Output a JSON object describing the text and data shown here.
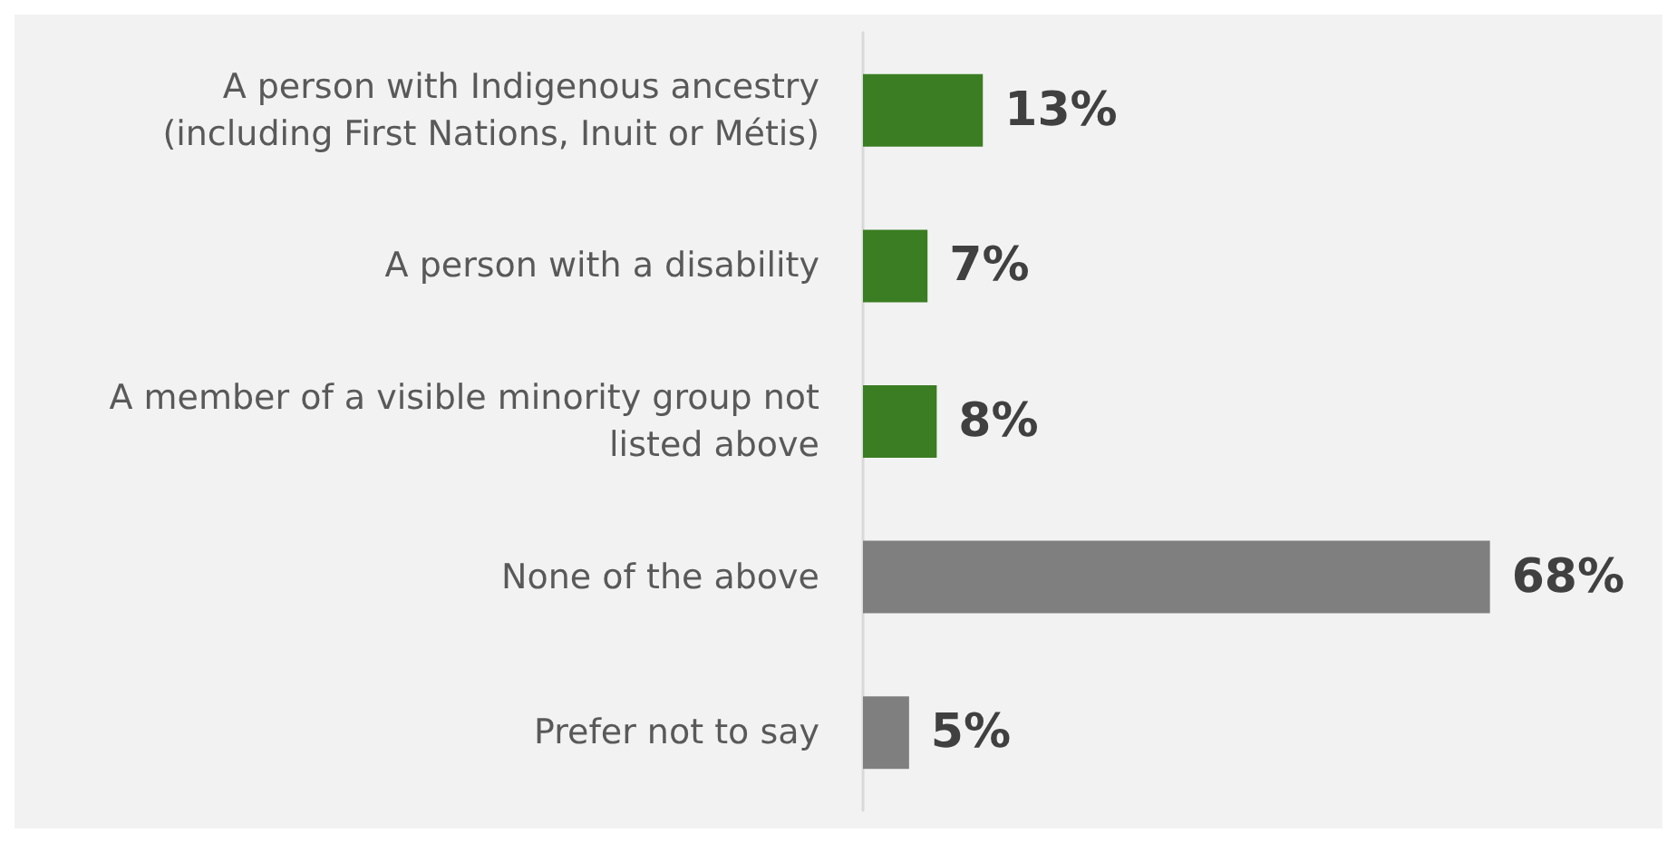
{
  "chart_data": {
    "type": "bar",
    "orientation": "horizontal",
    "categories": [
      "A person with Indigenous ancestry\n(including First Nations, Inuit or Métis)",
      "A person with a disability",
      "A member of a visible minority group not\nlisted above",
      "None of the above",
      "Prefer not to say"
    ],
    "values": [
      13,
      7,
      8,
      68,
      5
    ],
    "colors": [
      "#3a7d22",
      "#3a7d22",
      "#3a7d22",
      "#7f7f7f",
      "#7f7f7f"
    ],
    "value_labels": [
      "13%",
      "7%",
      "8%",
      "68%",
      "5%"
    ]
  }
}
